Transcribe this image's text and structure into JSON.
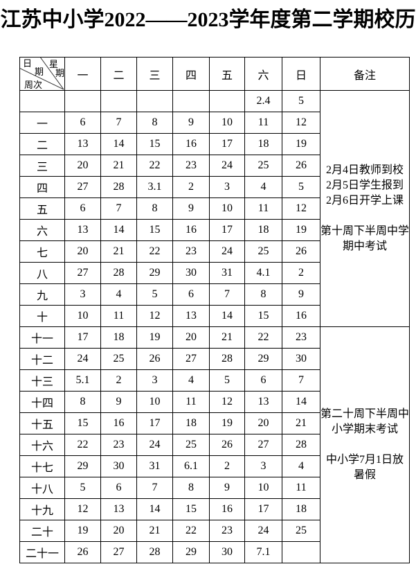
{
  "title": "江苏中小学2022——2023学年度第二学期校历",
  "table": {
    "corner": {
      "date_label": "日期",
      "weekday_label": "星期",
      "weeknum_label": "周次"
    },
    "day_headers": [
      "一",
      "二",
      "三",
      "四",
      "五",
      "六",
      "日"
    ],
    "remarks_header": "备注",
    "rows": [
      {
        "week": "",
        "days": [
          "",
          "",
          "",
          "",
          "",
          "2.4",
          "5"
        ]
      },
      {
        "week": "一",
        "days": [
          "6",
          "7",
          "8",
          "9",
          "10",
          "11",
          "12"
        ]
      },
      {
        "week": "二",
        "days": [
          "13",
          "14",
          "15",
          "16",
          "17",
          "18",
          "19"
        ]
      },
      {
        "week": "三",
        "days": [
          "20",
          "21",
          "22",
          "23",
          "24",
          "25",
          "26"
        ]
      },
      {
        "week": "四",
        "days": [
          "27",
          "28",
          "3.1",
          "2",
          "3",
          "4",
          "5"
        ]
      },
      {
        "week": "五",
        "days": [
          "6",
          "7",
          "8",
          "9",
          "10",
          "11",
          "12"
        ]
      },
      {
        "week": "六",
        "days": [
          "13",
          "14",
          "15",
          "16",
          "17",
          "18",
          "19"
        ]
      },
      {
        "week": "七",
        "days": [
          "20",
          "21",
          "22",
          "23",
          "24",
          "25",
          "26"
        ]
      },
      {
        "week": "八",
        "days": [
          "27",
          "28",
          "29",
          "30",
          "31",
          "4.1",
          "2"
        ]
      },
      {
        "week": "九",
        "days": [
          "3",
          "4",
          "5",
          "6",
          "7",
          "8",
          "9"
        ]
      },
      {
        "week": "十",
        "days": [
          "10",
          "11",
          "12",
          "13",
          "14",
          "15",
          "16"
        ]
      },
      {
        "week": "十一",
        "days": [
          "17",
          "18",
          "19",
          "20",
          "21",
          "22",
          "23"
        ]
      },
      {
        "week": "十二",
        "days": [
          "24",
          "25",
          "26",
          "27",
          "28",
          "29",
          "30"
        ]
      },
      {
        "week": "十三",
        "days": [
          "5.1",
          "2",
          "3",
          "4",
          "5",
          "6",
          "7"
        ]
      },
      {
        "week": "十四",
        "days": [
          "8",
          "9",
          "10",
          "11",
          "12",
          "13",
          "14"
        ]
      },
      {
        "week": "十五",
        "days": [
          "15",
          "16",
          "17",
          "18",
          "19",
          "20",
          "21"
        ]
      },
      {
        "week": "十六",
        "days": [
          "22",
          "23",
          "24",
          "25",
          "26",
          "27",
          "28"
        ]
      },
      {
        "week": "十七",
        "days": [
          "29",
          "30",
          "31",
          "6.1",
          "2",
          "3",
          "4"
        ]
      },
      {
        "week": "十八",
        "days": [
          "5",
          "6",
          "7",
          "8",
          "9",
          "10",
          "11"
        ]
      },
      {
        "week": "十九",
        "days": [
          "12",
          "13",
          "14",
          "15",
          "16",
          "17",
          "18"
        ]
      },
      {
        "week": "二十",
        "days": [
          "19",
          "20",
          "21",
          "22",
          "23",
          "24",
          "25"
        ]
      },
      {
        "week": "二十一",
        "days": [
          "26",
          "27",
          "28",
          "29",
          "30",
          "7.1",
          ""
        ]
      }
    ],
    "remarks_blocks": [
      {
        "lines": [
          "2月4日教师到校",
          "2月5日学生报到",
          "2月6日开学上课",
          "",
          "第十周下半周中学",
          "期中考试"
        ]
      },
      {
        "lines": [
          "第二十周下半周中",
          "小学期末考试",
          "",
          "中小学7月1日放",
          "暑假"
        ]
      }
    ]
  }
}
